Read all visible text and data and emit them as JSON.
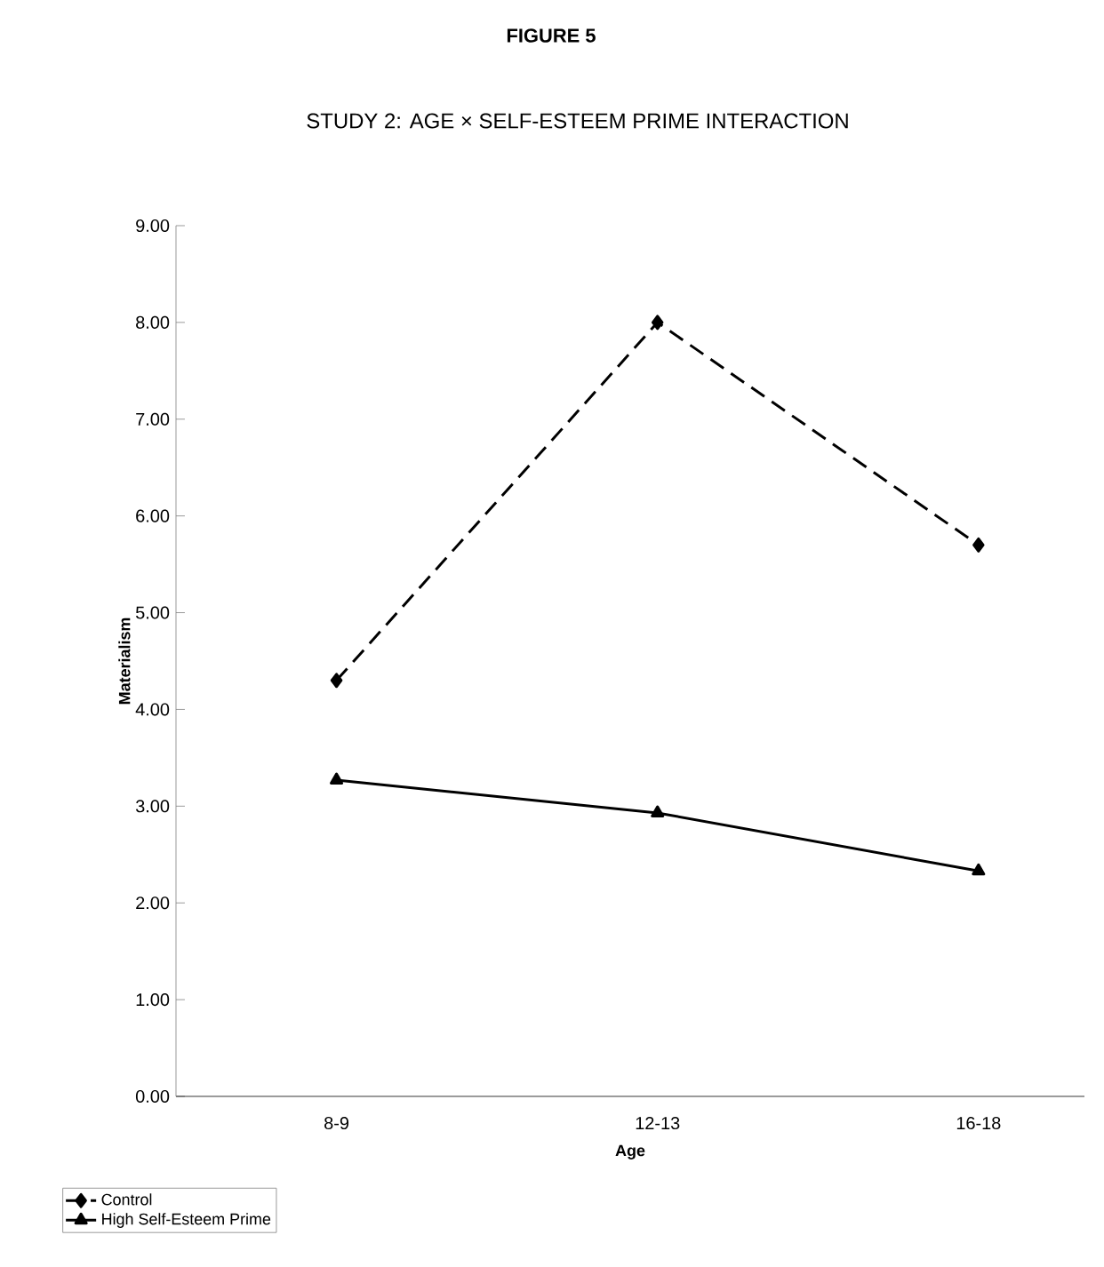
{
  "chart_data": {
    "type": "line",
    "title": "FIGURE 5",
    "subtitle": "STUDY 2: AGE × SELF-ESTEEM PRIME INTERACTION",
    "xlabel": "Age",
    "ylabel": "Materialism",
    "categories": [
      "8-9",
      "12-13",
      "16-18"
    ],
    "series": [
      {
        "name": "Control",
        "color": "#000000",
        "values": [
          4.3,
          8.0,
          5.7
        ],
        "marker": "diamond",
        "line_style": "dashed"
      },
      {
        "name": "High Self-Esteem Prime",
        "color": "#000000",
        "values": [
          3.27,
          2.93,
          2.33
        ],
        "marker": "triangle",
        "line_style": "solid"
      }
    ],
    "ylim": [
      0,
      9
    ],
    "yticks": [
      {
        "value": 0,
        "label": "0.00"
      },
      {
        "value": 1,
        "label": "1.00"
      },
      {
        "value": 2,
        "label": "2.00"
      },
      {
        "value": 3,
        "label": "3.00"
      },
      {
        "value": 4,
        "label": "4.00"
      },
      {
        "value": 5,
        "label": "5.00"
      },
      {
        "value": 6,
        "label": "6.00"
      },
      {
        "value": 7,
        "label": "7.00"
      },
      {
        "value": 8,
        "label": "8.00"
      },
      {
        "value": 9,
        "label": "9.00"
      }
    ],
    "grid": false,
    "legend": "bottom left"
  }
}
